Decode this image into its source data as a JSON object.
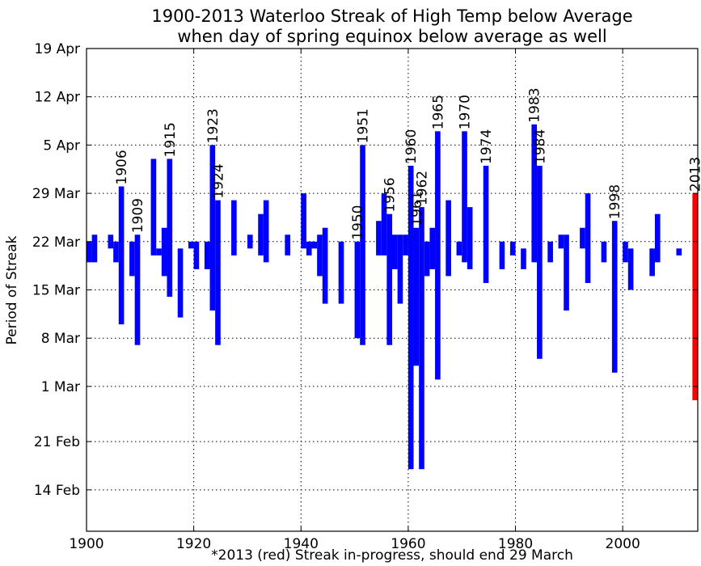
{
  "chart_data": {
    "type": "bar",
    "title": "1900-2013 Waterloo Streak of High Temp below Average",
    "subtitle": "when day of spring equinox below average as well",
    "xlabel": "*2013 (red) Streak in-progress, should end 29 March",
    "ylabel": "Period of Streak",
    "xlim": [
      1900,
      2014
    ],
    "ylim": [
      "8 Feb",
      "19 Apr"
    ],
    "x_ticks": [
      "1900",
      "1920",
      "1940",
      "1960",
      "1980",
      "2000"
    ],
    "y_ticks": [
      "14 Feb",
      "21 Feb",
      "1 Mar",
      "8 Mar",
      "15 Mar",
      "22 Mar",
      "29 Mar",
      "5 Apr",
      "12 Apr",
      "19 Apr"
    ],
    "grid": true,
    "colors": {
      "series": "#0000ff",
      "highlight": "#ff0000",
      "grid": "#000000"
    },
    "streaks": [
      {
        "year": 1900,
        "start": "19 Mar",
        "end": "22 Mar"
      },
      {
        "year": 1901,
        "start": "19 Mar",
        "end": "23 Mar"
      },
      {
        "year": 1904,
        "start": "21 Mar",
        "end": "23 Mar"
      },
      {
        "year": 1905,
        "start": "19 Mar",
        "end": "22 Mar"
      },
      {
        "year": 1906,
        "start": "10 Mar",
        "end": "30 Mar",
        "label": "1906"
      },
      {
        "year": 1908,
        "start": "17 Mar",
        "end": "22 Mar"
      },
      {
        "year": 1909,
        "start": "7 Mar",
        "end": "23 Mar",
        "label": "1909"
      },
      {
        "year": 1912,
        "start": "20 Mar",
        "end": "3 Apr"
      },
      {
        "year": 1913,
        "start": "20 Mar",
        "end": "21 Mar"
      },
      {
        "year": 1914,
        "start": "17 Mar",
        "end": "24 Mar"
      },
      {
        "year": 1915,
        "start": "14 Mar",
        "end": "3 Apr",
        "label": "1915"
      },
      {
        "year": 1917,
        "start": "11 Mar",
        "end": "21 Mar"
      },
      {
        "year": 1919,
        "start": "21 Mar",
        "end": "22 Mar"
      },
      {
        "year": 1920,
        "start": "18 Mar",
        "end": "22 Mar"
      },
      {
        "year": 1922,
        "start": "18 Mar",
        "end": "22 Mar"
      },
      {
        "year": 1923,
        "start": "12 Mar",
        "end": "5 Apr",
        "label": "1923"
      },
      {
        "year": 1924,
        "start": "7 Mar",
        "end": "28 Mar",
        "label": "1924"
      },
      {
        "year": 1927,
        "start": "20 Mar",
        "end": "28 Mar"
      },
      {
        "year": 1930,
        "start": "21 Mar",
        "end": "23 Mar"
      },
      {
        "year": 1932,
        "start": "20 Mar",
        "end": "26 Mar"
      },
      {
        "year": 1933,
        "start": "19 Mar",
        "end": "28 Mar"
      },
      {
        "year": 1937,
        "start": "20 Mar",
        "end": "23 Mar"
      },
      {
        "year": 1940,
        "start": "21 Mar",
        "end": "29 Mar"
      },
      {
        "year": 1941,
        "start": "20 Mar",
        "end": "22 Mar"
      },
      {
        "year": 1942,
        "start": "21 Mar",
        "end": "22 Mar"
      },
      {
        "year": 1943,
        "start": "17 Mar",
        "end": "23 Mar"
      },
      {
        "year": 1944,
        "start": "13 Mar",
        "end": "24 Mar"
      },
      {
        "year": 1947,
        "start": "13 Mar",
        "end": "22 Mar"
      },
      {
        "year": 1950,
        "start": "8 Mar",
        "end": "22 Mar",
        "label": "1950"
      },
      {
        "year": 1951,
        "start": "7 Mar",
        "end": "5 Apr",
        "label": "1951"
      },
      {
        "year": 1954,
        "start": "20 Mar",
        "end": "25 Mar"
      },
      {
        "year": 1955,
        "start": "20 Mar",
        "end": "29 Mar"
      },
      {
        "year": 1956,
        "start": "7 Mar",
        "end": "26 Mar",
        "label": "1956"
      },
      {
        "year": 1957,
        "start": "18 Mar",
        "end": "23 Mar"
      },
      {
        "year": 1958,
        "start": "13 Mar",
        "end": "23 Mar"
      },
      {
        "year": 1959,
        "start": "20 Mar",
        "end": "23 Mar"
      },
      {
        "year": 1960,
        "start": "17 Feb",
        "end": "2 Apr",
        "label": "1960"
      },
      {
        "year": 1961,
        "start": "4 Mar",
        "end": "24 Mar",
        "label": "1961"
      },
      {
        "year": 1962,
        "start": "17 Feb",
        "end": "27 Mar",
        "label": "1962"
      },
      {
        "year": 1963,
        "start": "17 Mar",
        "end": "22 Mar"
      },
      {
        "year": 1964,
        "start": "18 Mar",
        "end": "24 Mar"
      },
      {
        "year": 1965,
        "start": "2 Mar",
        "end": "7 Apr",
        "label": "1965"
      },
      {
        "year": 1967,
        "start": "17 Mar",
        "end": "28 Mar"
      },
      {
        "year": 1969,
        "start": "20 Mar",
        "end": "22 Mar"
      },
      {
        "year": 1970,
        "start": "19 Mar",
        "end": "7 Apr",
        "label": "1970"
      },
      {
        "year": 1971,
        "start": "18 Mar",
        "end": "27 Mar"
      },
      {
        "year": 1974,
        "start": "16 Mar",
        "end": "2 Apr",
        "label": "1974"
      },
      {
        "year": 1977,
        "start": "18 Mar",
        "end": "22 Mar"
      },
      {
        "year": 1979,
        "start": "20 Mar",
        "end": "22 Mar"
      },
      {
        "year": 1981,
        "start": "18 Mar",
        "end": "21 Mar"
      },
      {
        "year": 1983,
        "start": "19 Mar",
        "end": "8 Apr",
        "label": "1983"
      },
      {
        "year": 1984,
        "start": "5 Mar",
        "end": "2 Apr",
        "label": "1984"
      },
      {
        "year": 1986,
        "start": "19 Mar",
        "end": "22 Mar"
      },
      {
        "year": 1988,
        "start": "21 Mar",
        "end": "23 Mar"
      },
      {
        "year": 1989,
        "start": "12 Mar",
        "end": "23 Mar"
      },
      {
        "year": 1992,
        "start": "21 Mar",
        "end": "24 Mar"
      },
      {
        "year": 1993,
        "start": "16 Mar",
        "end": "29 Mar"
      },
      {
        "year": 1996,
        "start": "19 Mar",
        "end": "22 Mar"
      },
      {
        "year": 1998,
        "start": "3 Mar",
        "end": "25 Mar",
        "label": "1998"
      },
      {
        "year": 2000,
        "start": "19 Mar",
        "end": "22 Mar"
      },
      {
        "year": 2001,
        "start": "15 Mar",
        "end": "21 Mar"
      },
      {
        "year": 2005,
        "start": "17 Mar",
        "end": "21 Mar"
      },
      {
        "year": 2006,
        "start": "19 Mar",
        "end": "26 Mar"
      },
      {
        "year": 2010,
        "start": "20 Mar",
        "end": "21 Mar"
      },
      {
        "year": 2013,
        "start": "27 Feb",
        "end": "29 Mar",
        "label": "2013",
        "in_progress": true
      }
    ]
  }
}
